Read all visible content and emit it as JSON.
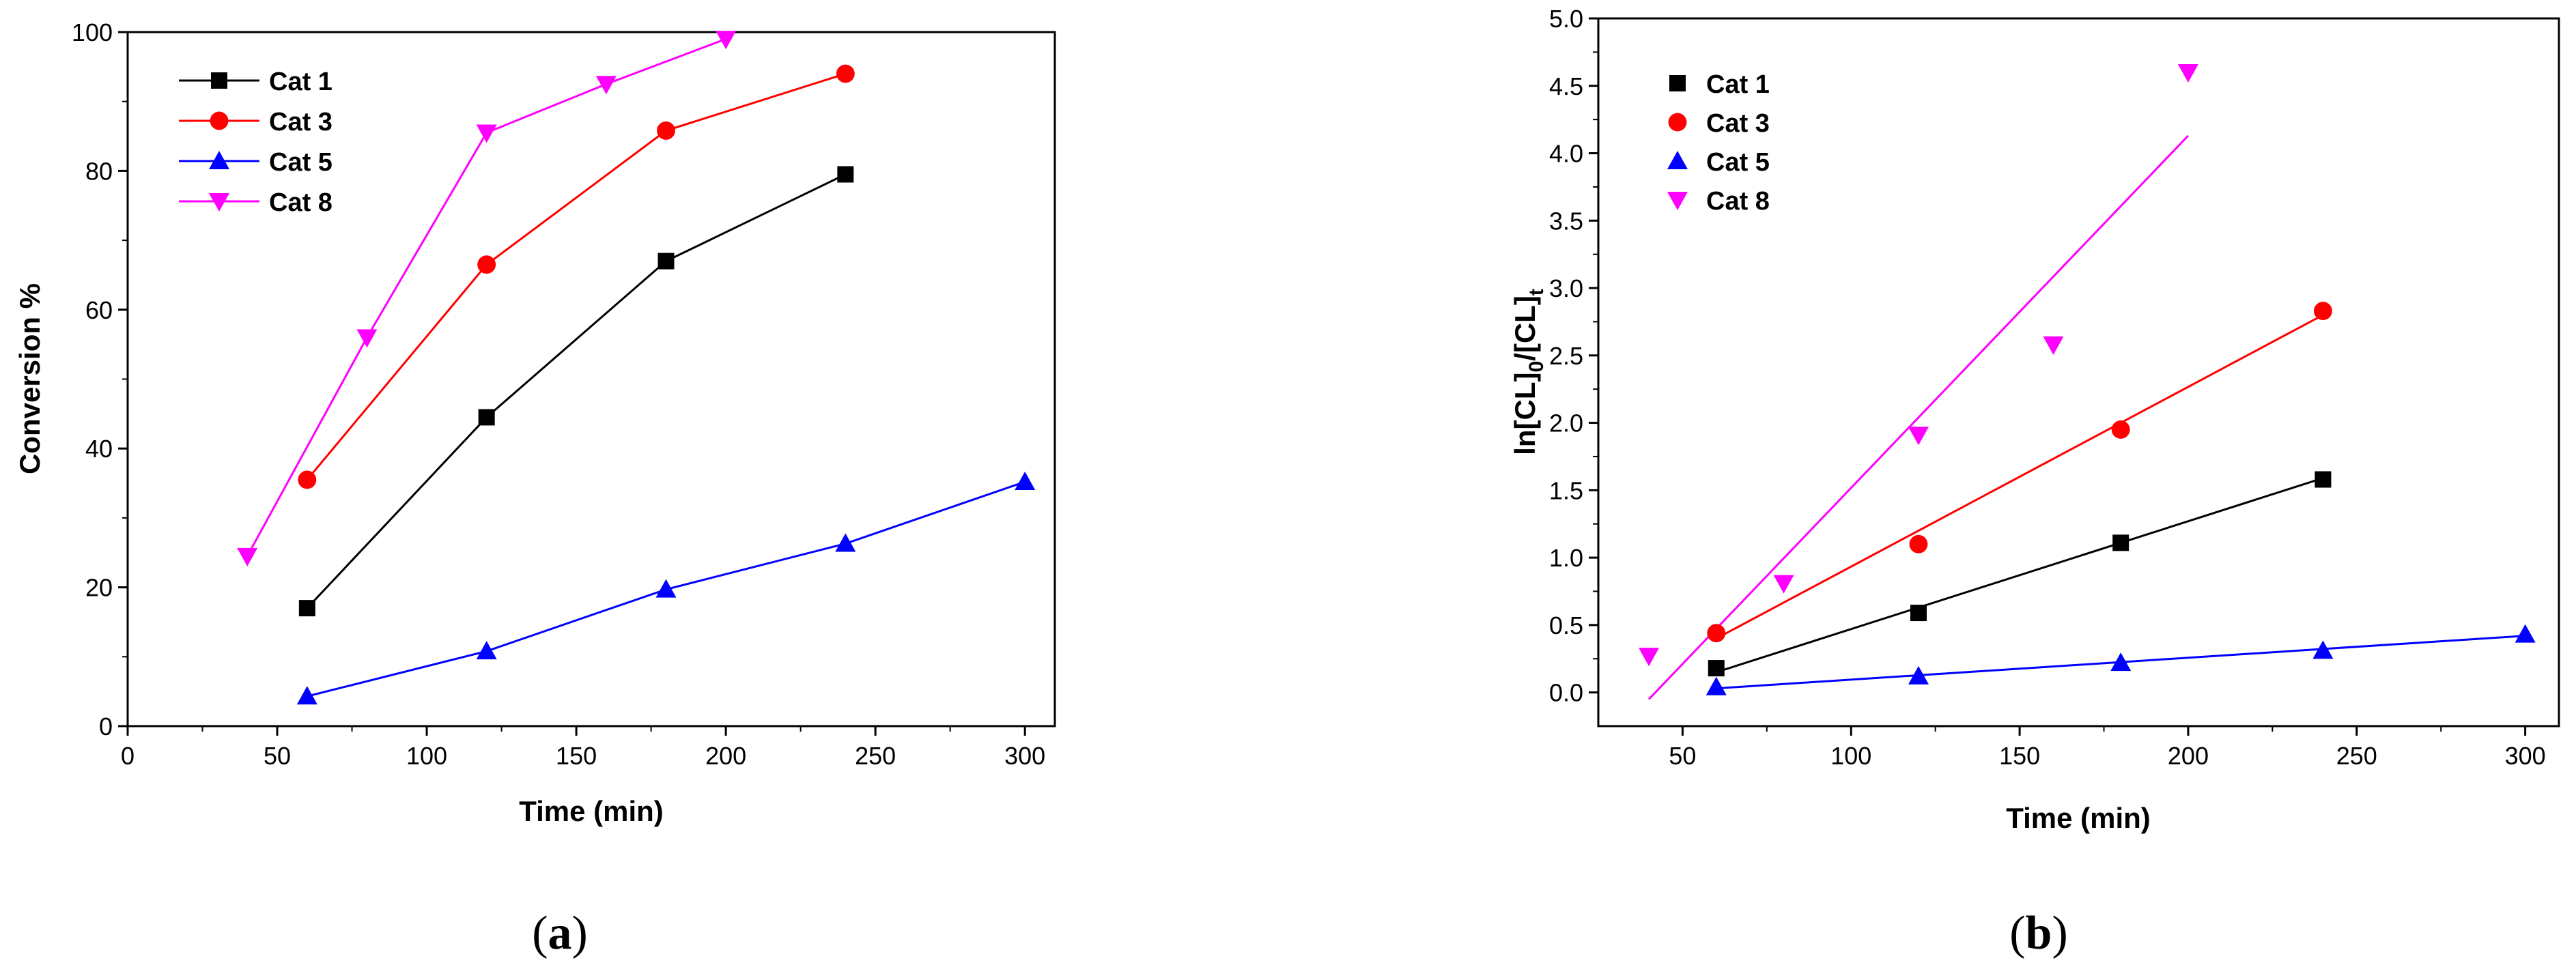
{
  "chart_data": [
    {
      "id": "a",
      "type": "line",
      "panel_label": "a",
      "xlabel": "Time (min)",
      "ylabel": "Conversion %",
      "xlim": [
        0,
        310
      ],
      "ylim": [
        0,
        100
      ],
      "xticks": [
        0,
        50,
        100,
        150,
        200,
        250,
        300
      ],
      "yticks": [
        0,
        20,
        40,
        60,
        80,
        100
      ],
      "legend_position": "top-left",
      "series": [
        {
          "name": "Cat 1",
          "color": "#000000",
          "marker": "square",
          "x": [
            60,
            120,
            180,
            240
          ],
          "y": [
            17,
            44.5,
            67,
            79.5
          ]
        },
        {
          "name": "Cat 3",
          "color": "#ff0000",
          "marker": "circle",
          "x": [
            60,
            120,
            180,
            240
          ],
          "y": [
            35.5,
            66.5,
            85.8,
            94
          ]
        },
        {
          "name": "Cat 5",
          "color": "#0000ff",
          "marker": "triangle-up",
          "x": [
            60,
            120,
            180,
            240,
            300
          ],
          "y": [
            4.3,
            10.8,
            19.7,
            26.3,
            35.2
          ]
        },
        {
          "name": "Cat 8",
          "color": "#ff00ff",
          "marker": "triangle-down",
          "x": [
            40,
            80,
            120,
            160,
            200
          ],
          "y": [
            24.5,
            56,
            85.5,
            92.5,
            99
          ]
        }
      ]
    },
    {
      "id": "b",
      "type": "scatter",
      "panel_label": "b",
      "xlabel": "Time (min)",
      "ylabel": {
        "p1": "ln[CL]",
        "s1": "0",
        "p2": "/[CL]",
        "s2": "t"
      },
      "xlim": [
        25,
        310
      ],
      "ylim": [
        -0.25,
        5.0
      ],
      "xticks": [
        50,
        100,
        150,
        200,
        250,
        300
      ],
      "yticks": [
        "0.0",
        "0.5",
        "1.0",
        "1.5",
        "2.0",
        "2.5",
        "3.0",
        "3.5",
        "4.0",
        "4.5",
        "5.0"
      ],
      "legend_position": "top-left",
      "series": [
        {
          "name": "Cat 1",
          "color": "#000000",
          "marker": "square",
          "x": [
            60,
            120,
            180,
            240
          ],
          "y": [
            0.18,
            0.59,
            1.11,
            1.58
          ],
          "fit": [
            [
              60,
              0.15
            ],
            [
              240,
              1.59
            ]
          ]
        },
        {
          "name": "Cat 3",
          "color": "#ff0000",
          "marker": "circle",
          "x": [
            60,
            120,
            180,
            240
          ],
          "y": [
            0.44,
            1.1,
            1.95,
            2.83
          ],
          "fit": [
            [
              60,
              0.4
            ],
            [
              240,
              2.8
            ]
          ]
        },
        {
          "name": "Cat 5",
          "color": "#0000ff",
          "marker": "triangle-up",
          "x": [
            60,
            120,
            180,
            240,
            300
          ],
          "y": [
            0.04,
            0.12,
            0.22,
            0.31,
            0.43
          ],
          "fit": [
            [
              60,
              0.03
            ],
            [
              300,
              0.42
            ]
          ]
        },
        {
          "name": "Cat 8",
          "color": "#ff00ff",
          "marker": "triangle-down",
          "x": [
            40,
            80,
            120,
            160,
            200
          ],
          "y": [
            0.27,
            0.81,
            1.91,
            2.58,
            4.6
          ],
          "fit": [
            [
              40,
              -0.05
            ],
            [
              200,
              4.13
            ]
          ]
        }
      ]
    }
  ]
}
